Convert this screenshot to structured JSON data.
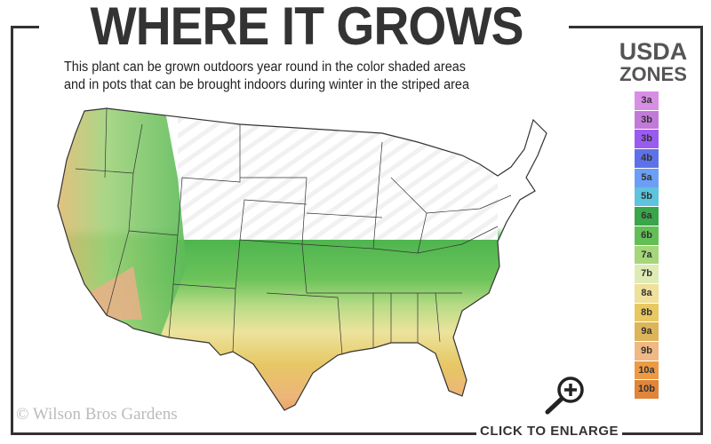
{
  "header": {
    "title": "WHERE IT GROWS",
    "subtitle_line1": "This plant can be grown outdoors year round in the color shaded areas",
    "subtitle_line2": "and in pots that can be brought indoors during winter in the striped area"
  },
  "legend": {
    "title_line1": "USDA",
    "title_line2": "ZONES",
    "zones": [
      {
        "label": "3a",
        "color": "#d98ee6"
      },
      {
        "label": "3b",
        "color": "#c27ad9"
      },
      {
        "label": "3b",
        "color": "#9a5cf0"
      },
      {
        "label": "4b",
        "color": "#5d72e8"
      },
      {
        "label": "5a",
        "color": "#6d9ef5"
      },
      {
        "label": "5b",
        "color": "#5ec3dc"
      },
      {
        "label": "6a",
        "color": "#3aa64a"
      },
      {
        "label": "6b",
        "color": "#63bf55"
      },
      {
        "label": "7a",
        "color": "#a5d67a"
      },
      {
        "label": "7b",
        "color": "#dfebb5"
      },
      {
        "label": "8a",
        "color": "#efe09a"
      },
      {
        "label": "8b",
        "color": "#e8c860"
      },
      {
        "label": "9a",
        "color": "#dcb55a"
      },
      {
        "label": "9b",
        "color": "#f0b883"
      },
      {
        "label": "10a",
        "color": "#ec9a45"
      },
      {
        "label": "10b",
        "color": "#e0853a"
      }
    ]
  },
  "map": {
    "icon": "usa-zone-map"
  },
  "footer": {
    "copyright": "© Wilson Bros Gardens",
    "enlarge_label": "CLICK TO ENLARGE",
    "enlarge_icon": "magnifier-plus-icon"
  }
}
